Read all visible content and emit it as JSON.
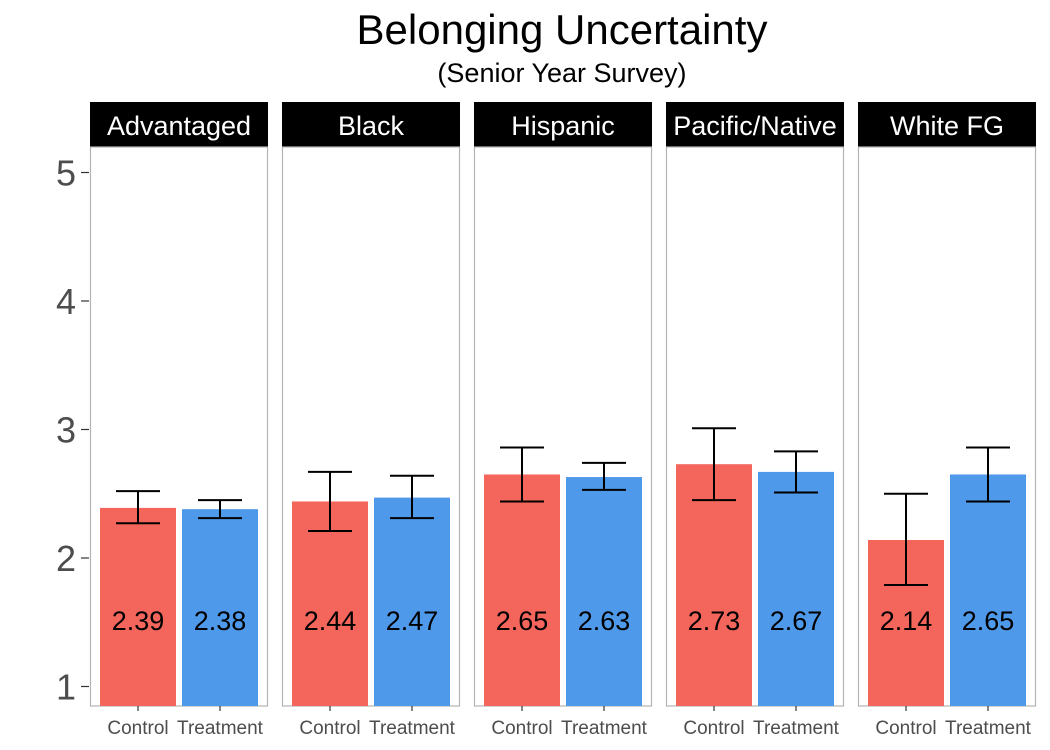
{
  "chart_data": {
    "type": "bar",
    "title": "Belonging Uncertainty",
    "subtitle": "(Senior Year Survey)",
    "xlabel": "",
    "ylabel": "",
    "ylim": [
      1,
      5.2
    ],
    "yticks": [
      1,
      2,
      3,
      4,
      5
    ],
    "categories": [
      "Control",
      "Treatment"
    ],
    "colors": {
      "Control": "#f4665c",
      "Treatment": "#4e99e9"
    },
    "grid": false,
    "legend": "none",
    "panels": [
      {
        "name": "Advantaged",
        "values": [
          2.39,
          2.38
        ],
        "labels": [
          "2.39",
          "2.38"
        ],
        "err_low": [
          2.27,
          2.31
        ],
        "err_high": [
          2.52,
          2.45
        ]
      },
      {
        "name": "Black",
        "values": [
          2.44,
          2.47
        ],
        "labels": [
          "2.44",
          "2.47"
        ],
        "err_low": [
          2.21,
          2.31
        ],
        "err_high": [
          2.67,
          2.64
        ]
      },
      {
        "name": "Hispanic",
        "values": [
          2.65,
          2.63
        ],
        "labels": [
          "2.65",
          "2.63"
        ],
        "err_low": [
          2.44,
          2.53
        ],
        "err_high": [
          2.86,
          2.74
        ]
      },
      {
        "name": "Pacific/Native",
        "values": [
          2.73,
          2.67
        ],
        "labels": [
          "2.73",
          "2.67"
        ],
        "err_low": [
          2.45,
          2.51
        ],
        "err_high": [
          3.01,
          2.83
        ]
      },
      {
        "name": "White FG",
        "values": [
          2.14,
          2.65
        ],
        "labels": [
          "2.14",
          "2.65"
        ],
        "err_low": [
          1.79,
          2.44
        ],
        "err_high": [
          2.5,
          2.86
        ]
      }
    ]
  }
}
